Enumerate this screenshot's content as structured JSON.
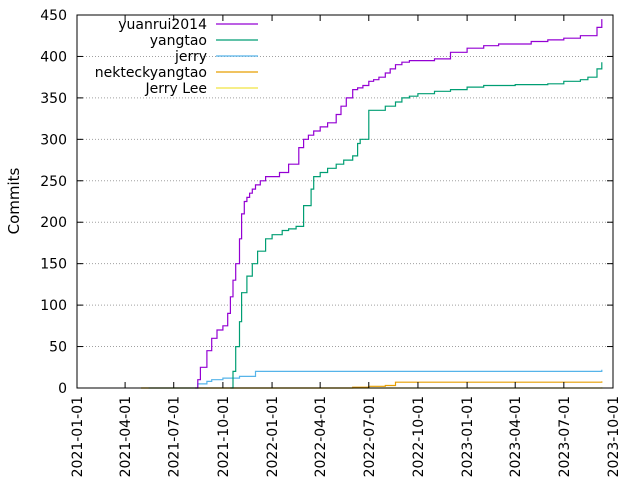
{
  "chart_data": {
    "type": "line",
    "ylabel": "Commits",
    "xlabel": "",
    "x_axis_type": "date",
    "xlim": [
      "2021-01-01",
      "2023-10-01"
    ],
    "ylim": [
      0,
      450
    ],
    "x_ticks": [
      "2021-01-01",
      "2021-04-01",
      "2021-07-01",
      "2021-10-01",
      "2022-01-01",
      "2022-04-01",
      "2022-07-01",
      "2022-10-01",
      "2023-01-01",
      "2023-04-01",
      "2023-07-01",
      "2023-10-01"
    ],
    "y_ticks": [
      0,
      50,
      100,
      150,
      200,
      250,
      300,
      350,
      400,
      450
    ],
    "grid": "horizontal dotted",
    "legend_position": "top-left",
    "series": [
      {
        "name": "yuanrui2014",
        "color": "#9400d3",
        "x": [
          "2021-08-10",
          "2021-08-15",
          "2021-08-20",
          "2021-09-01",
          "2021-09-10",
          "2021-09-20",
          "2021-10-01",
          "2021-10-10",
          "2021-10-15",
          "2021-10-20",
          "2021-10-25",
          "2021-11-01",
          "2021-11-05",
          "2021-11-10",
          "2021-11-15",
          "2021-11-20",
          "2021-11-25",
          "2021-12-01",
          "2021-12-10",
          "2021-12-20",
          "2022-01-01",
          "2022-01-15",
          "2022-02-01",
          "2022-02-20",
          "2022-03-01",
          "2022-03-10",
          "2022-03-20",
          "2022-04-01",
          "2022-04-15",
          "2022-05-01",
          "2022-05-10",
          "2022-05-20",
          "2022-06-01",
          "2022-06-10",
          "2022-06-20",
          "2022-07-01",
          "2022-07-10",
          "2022-07-20",
          "2022-08-01",
          "2022-08-10",
          "2022-08-20",
          "2022-09-01",
          "2022-09-15",
          "2022-10-01",
          "2022-11-01",
          "2022-12-01",
          "2023-01-01",
          "2023-02-01",
          "2023-03-01",
          "2023-04-01",
          "2023-05-01",
          "2023-06-01",
          "2023-07-01",
          "2023-08-01",
          "2023-08-15",
          "2023-09-01",
          "2023-09-10"
        ],
        "y": [
          0,
          10,
          25,
          45,
          60,
          70,
          75,
          90,
          110,
          130,
          150,
          180,
          210,
          225,
          230,
          235,
          240,
          245,
          250,
          255,
          255,
          260,
          270,
          290,
          300,
          305,
          310,
          315,
          320,
          330,
          340,
          350,
          360,
          362,
          365,
          370,
          372,
          375,
          380,
          385,
          390,
          393,
          395,
          395,
          397,
          405,
          410,
          413,
          415,
          415,
          418,
          420,
          422,
          425,
          425,
          435,
          445
        ]
      },
      {
        "name": "yangtao",
        "color": "#009e73",
        "x": [
          "2021-10-15",
          "2021-10-20",
          "2021-10-25",
          "2021-11-01",
          "2021-11-05",
          "2021-11-15",
          "2021-11-25",
          "2021-12-05",
          "2021-12-20",
          "2022-01-01",
          "2022-01-20",
          "2022-02-01",
          "2022-02-15",
          "2022-03-01",
          "2022-03-15",
          "2022-03-20",
          "2022-04-01",
          "2022-04-15",
          "2022-05-01",
          "2022-05-15",
          "2022-06-01",
          "2022-06-10",
          "2022-06-15",
          "2022-07-01",
          "2022-08-01",
          "2022-08-20",
          "2022-09-01",
          "2022-09-15",
          "2022-10-01",
          "2022-11-01",
          "2022-12-01",
          "2023-01-01",
          "2023-02-01",
          "2023-03-01",
          "2023-04-01",
          "2023-05-01",
          "2023-06-01",
          "2023-07-01",
          "2023-08-01",
          "2023-08-15",
          "2023-09-01",
          "2023-09-10"
        ],
        "y": [
          0,
          20,
          50,
          80,
          115,
          135,
          150,
          165,
          180,
          185,
          190,
          192,
          195,
          220,
          240,
          255,
          260,
          265,
          270,
          275,
          280,
          295,
          300,
          335,
          340,
          345,
          350,
          352,
          355,
          358,
          360,
          363,
          365,
          365,
          366,
          366,
          367,
          370,
          372,
          375,
          385,
          393
        ]
      },
      {
        "name": "jerry",
        "color": "#56b4e9",
        "x": [
          "2021-05-15",
          "2021-08-15",
          "2021-09-01",
          "2021-09-10",
          "2021-10-01",
          "2021-11-01",
          "2021-12-01",
          "2023-09-10"
        ],
        "y": [
          0,
          5,
          8,
          10,
          12,
          14,
          20,
          22
        ]
      },
      {
        "name": "nekteckyangtao",
        "color": "#e69f00",
        "x": [
          "2021-05-01",
          "2022-06-01",
          "2022-07-01",
          "2022-08-01",
          "2022-08-20",
          "2023-08-01",
          "2023-09-10"
        ],
        "y": [
          0,
          1,
          2,
          3,
          7,
          7,
          8
        ]
      },
      {
        "name": "Jerry Lee",
        "color": "#f0e442",
        "x": [
          "2021-05-01",
          "2023-09-10"
        ],
        "y": [
          0,
          1
        ]
      }
    ]
  }
}
